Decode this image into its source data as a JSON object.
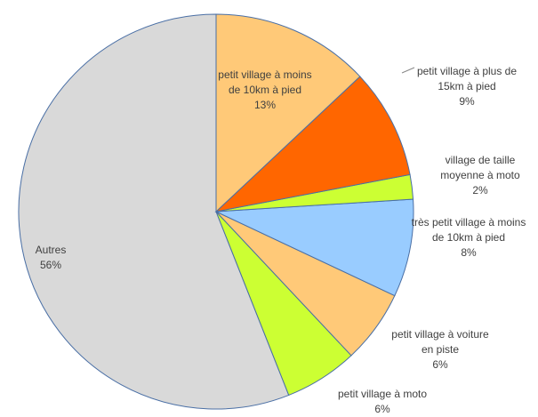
{
  "chart_data": {
    "type": "pie",
    "categories": [
      "petit village à moins de 10km à pied",
      "petit village à plus de 15km à pied",
      "village de taille moyenne à moto",
      "très petit village à moins de 10km à pied",
      "petit village à voiture en piste",
      "petit village à moto",
      "Autres"
    ],
    "values": [
      13,
      9,
      2,
      8,
      6,
      6,
      56
    ],
    "value_labels": [
      "13%",
      "9%",
      "2%",
      "8%",
      "6%",
      "6%",
      "56%"
    ],
    "colors": [
      "#ffc978",
      "#ff6600",
      "#ccff33",
      "#99ccff",
      "#ffc978",
      "#ccff33",
      "#d9d9d9"
    ]
  }
}
